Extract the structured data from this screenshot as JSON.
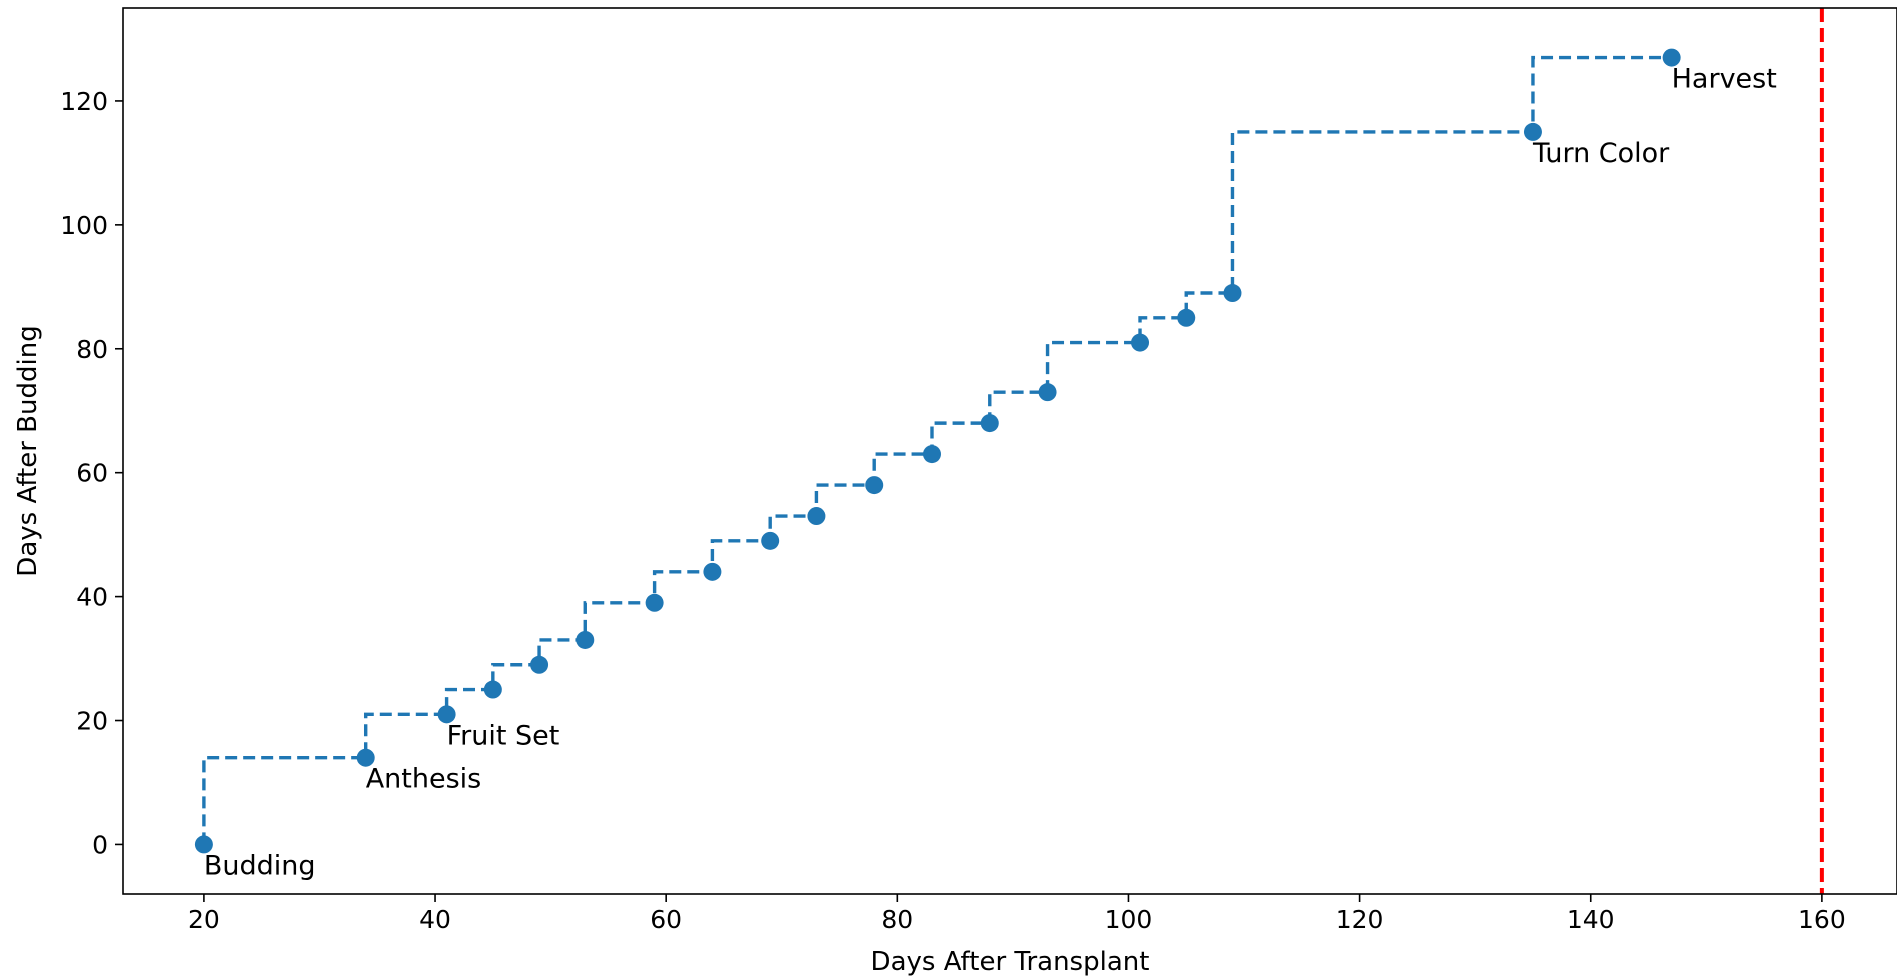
{
  "chart_data": {
    "type": "line",
    "step": "post",
    "title": "",
    "xlabel": "Days After Transplant",
    "ylabel": "Days After Budding",
    "xlim": [
      13,
      166.5
    ],
    "ylim": [
      -8,
      135
    ],
    "xticks": [
      20,
      40,
      60,
      80,
      100,
      120,
      140,
      160
    ],
    "yticks": [
      0,
      20,
      40,
      60,
      80,
      100,
      120
    ],
    "grid": false,
    "legend": "none",
    "series": [
      {
        "x": [
          20,
          34,
          41,
          45,
          49,
          53,
          59,
          64,
          69,
          73,
          78,
          83,
          88,
          93,
          101,
          105,
          109,
          135,
          147
        ],
        "y": [
          0,
          14,
          21,
          25,
          29,
          33,
          39,
          44,
          49,
          53,
          58,
          63,
          68,
          73,
          81,
          85,
          89,
          115,
          127
        ],
        "color": "#1f77b4",
        "linestyle": "dashed",
        "marker": "circle"
      }
    ],
    "annotations": [
      {
        "x": 20,
        "y": 0,
        "text": "Budding"
      },
      {
        "x": 34,
        "y": 14,
        "text": "Anthesis"
      },
      {
        "x": 41,
        "y": 21,
        "text": "Fruit Set"
      },
      {
        "x": 135,
        "y": 115,
        "text": "Turn Color"
      },
      {
        "x": 147,
        "y": 127,
        "text": "Harvest"
      }
    ],
    "reference_lines": [
      {
        "orientation": "vertical",
        "x": 160,
        "color": "#ff0000",
        "linestyle": "dashed"
      }
    ]
  }
}
